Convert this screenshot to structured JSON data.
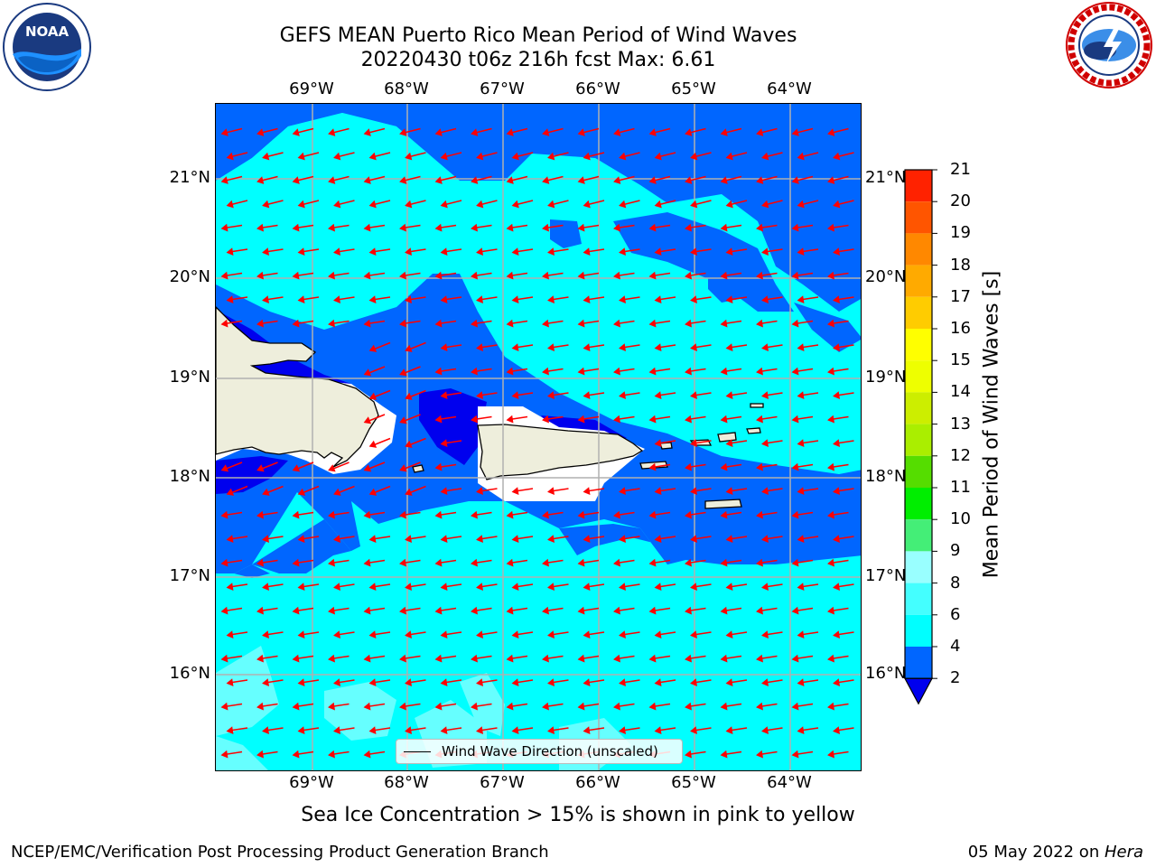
{
  "title": {
    "line1": "GEFS MEAN Puerto Rico Mean Period of Wind Waves",
    "line2": "20220430 t06z 216h fcst   Max: 6.61"
  },
  "map": {
    "lon_labels": [
      "69°W",
      "68°W",
      "67°W",
      "66°W",
      "65°W",
      "64°W"
    ],
    "lat_labels": [
      "21°N",
      "20°N",
      "19°N",
      "18°N",
      "17°N",
      "16°N"
    ],
    "legend_label": "Wind Wave Direction (unscaled)",
    "arrow_color": "#ff0000",
    "land_color": "#eeeedc"
  },
  "colorbar": {
    "label": "Mean Period of Wind Waves [s]",
    "ticks": [
      "21",
      "20",
      "19",
      "18",
      "17",
      "16",
      "15",
      "14",
      "13",
      "12",
      "11",
      "10",
      "9",
      "8",
      "6",
      "4",
      "2"
    ],
    "colors": {
      "2-4": "#0066ff",
      "4-6": "#00ffff",
      "6-8": "#44ffff",
      "8-9": "#99ffff",
      "9-10": "#44ee77",
      "10-11": "#00ee00",
      "11-12": "#55dd00",
      "12-13": "#aaee00",
      "13-14": "#ccee00",
      "14-15": "#eeff00",
      "15-16": "#ffff00",
      "16-17": "#ffcc00",
      "17-18": "#ffaa00",
      "18-19": "#ff8800",
      "19-20": "#ff5500",
      "20-21": "#ff2200",
      "above-21": "#ff0000",
      "below-2": "#0000ee"
    }
  },
  "note": "Sea Ice Concentration > 15% is shown in pink to yellow",
  "footer": {
    "left": "NCEP/EMC/Verification Post Processing Product Generation Branch",
    "date": "05 May 2022 on ",
    "machine": "Hera"
  },
  "logos": {
    "noaa_text": "NOAA",
    "nws_text": "NATIONAL WEATHER SERVICE"
  }
}
